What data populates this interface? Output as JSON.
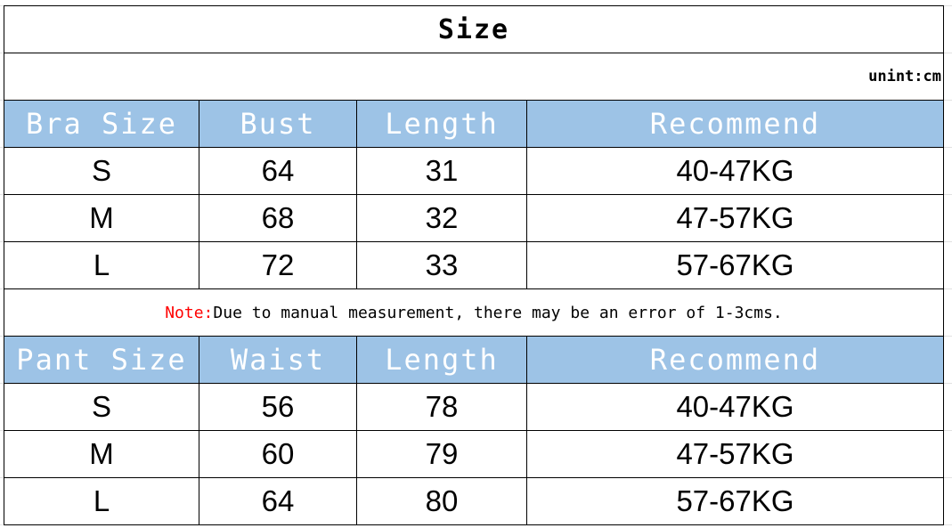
{
  "title": "Size",
  "unit": "unint:cm",
  "header_color": "#9dc3e6",
  "bra": {
    "headers": [
      "Bra Size",
      "Bust",
      "Length",
      "Recommend"
    ],
    "rows": [
      [
        "S",
        "64",
        "31",
        "40-47KG"
      ],
      [
        "M",
        "68",
        "32",
        "47-57KG"
      ],
      [
        "L",
        "72",
        "33",
        "57-67KG"
      ]
    ]
  },
  "note": {
    "label": "Note:",
    "text": "Due to manual measurement, there may be an error of 1-3cms."
  },
  "pant": {
    "headers": [
      "Pant Size",
      "Waist",
      "Length",
      "Recommend"
    ],
    "rows": [
      [
        "S",
        "56",
        "78",
        "40-47KG"
      ],
      [
        "M",
        "60",
        "79",
        "47-57KG"
      ],
      [
        "L",
        "64",
        "80",
        "57-67KG"
      ]
    ]
  }
}
